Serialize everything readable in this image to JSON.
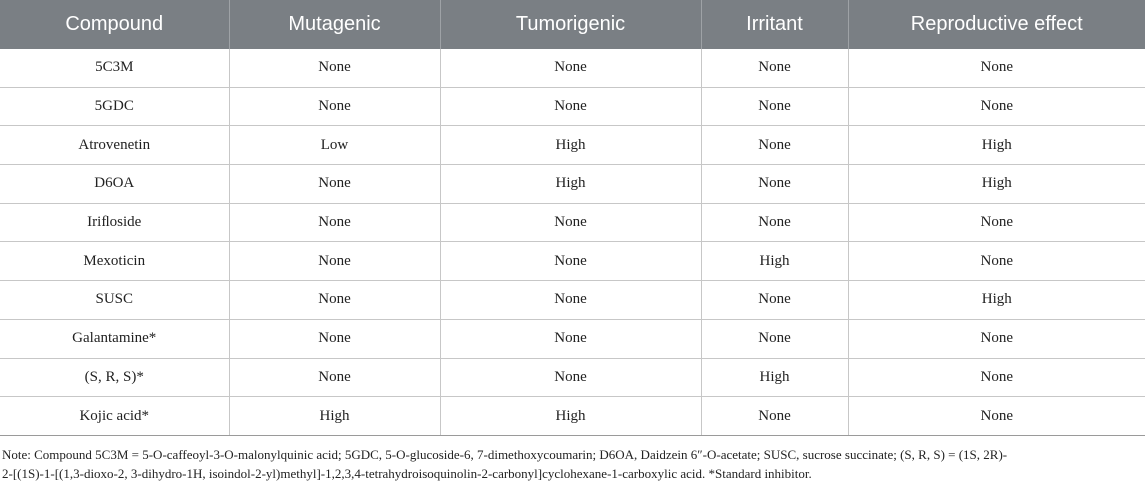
{
  "table": {
    "headers": [
      "Compound",
      "Mutagenic",
      "Tumorigenic",
      "Irritant",
      "Reproductive effect"
    ],
    "rows": [
      [
        "5C3M",
        "None",
        "None",
        "None",
        "None"
      ],
      [
        "5GDC",
        "None",
        "None",
        "None",
        "None"
      ],
      [
        "Atrovenetin",
        "Low",
        "High",
        "None",
        "High"
      ],
      [
        "D6OA",
        "None",
        "High",
        "None",
        "High"
      ],
      [
        "Iriﬂoside",
        "None",
        "None",
        "None",
        "None"
      ],
      [
        "Mexoticin",
        "None",
        "None",
        "High",
        "None"
      ],
      [
        "SUSC",
        "None",
        "None",
        "None",
        "High"
      ],
      [
        "Galantamine*",
        "None",
        "None",
        "None",
        "None"
      ],
      [
        "(S, R, S)*",
        "None",
        "None",
        "High",
        "None"
      ],
      [
        "Kojic acid*",
        "High",
        "High",
        "None",
        "None"
      ]
    ]
  },
  "note": {
    "line1": "Note: Compound 5C3M = 5-O-caffeoyl-3-O-malonylquinic acid; 5GDC, 5-O-glucoside-6, 7-dimethoxycoumarin; D6OA, Daidzein 6″-O-acetate; SUSC, sucrose succinate; (S, R, S) = (1S, 2R)-",
    "line2": "2-[(1S)-1-[(1,3-dioxo-2, 3-dihydro-1H, isoindol-2-yl)methyl]-1,2,3,4-tetrahydroisoquinolin-2-carbonyl]cyclohexane-1-carboxylic acid. *Standard inhibitor."
  }
}
